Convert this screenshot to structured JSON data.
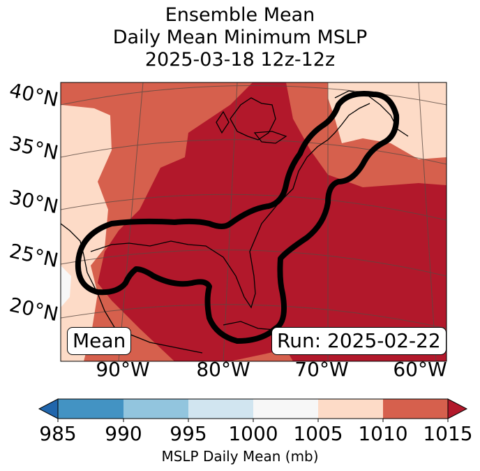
{
  "title": {
    "line1": "Ensemble Mean",
    "line2": "Daily Mean Minimum MSLP",
    "line3": "2025-03-18 12z-12z"
  },
  "map": {
    "lat_labels": [
      "40°N",
      "35°N",
      "30°N",
      "25°N",
      "20°N"
    ],
    "lon_labels": [
      "90°W",
      "80°W",
      "70°W",
      "60°W"
    ],
    "mean_label": "Mean",
    "run_label": "Run: 2025-02-22"
  },
  "colorbar": {
    "ticks": [
      "985",
      "990",
      "995",
      "1000",
      "1005",
      "1010",
      "1015"
    ],
    "label": "MSLP Daily Mean (mb)",
    "bins": [
      {
        "range": "<985",
        "color": "#2166ac"
      },
      {
        "range": "985-990",
        "color": "#4393c3"
      },
      {
        "range": "990-995",
        "color": "#92c5de"
      },
      {
        "range": "995-1000",
        "color": "#d1e5f0"
      },
      {
        "range": "1000-1005",
        "color": "#f7f7f7"
      },
      {
        "range": "1005-1010",
        "color": "#fddbc7"
      },
      {
        "range": "1010-1015",
        "color": "#d6604d"
      },
      {
        "range": ">1015",
        "color": "#b2182b"
      }
    ]
  }
}
